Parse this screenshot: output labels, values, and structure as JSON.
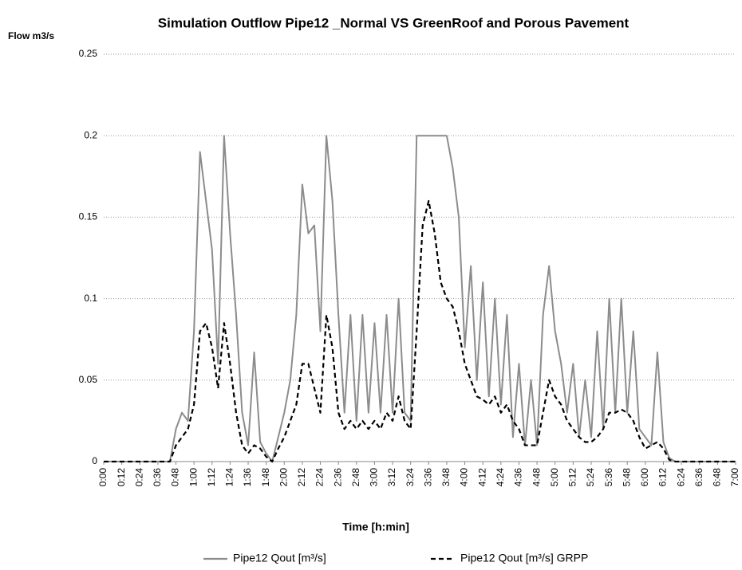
{
  "chart_data": {
    "type": "line",
    "title": "Simulation Outflow Pipe12 _Normal VS GreenRoof and Porous Pavement",
    "y_label": "Flow m3/s",
    "x_label": "Time [h:min]",
    "x": [
      0,
      4,
      8,
      12,
      16,
      20,
      24,
      28,
      32,
      36,
      40,
      44,
      48,
      52,
      56,
      60,
      64,
      68,
      72,
      76,
      80,
      84,
      88,
      92,
      96,
      100,
      104,
      108,
      112,
      116,
      120,
      124,
      128,
      132,
      136,
      140,
      144,
      148,
      152,
      156,
      160,
      164,
      168,
      172,
      176,
      180,
      184,
      188,
      192,
      196,
      200,
      204,
      208,
      212,
      216,
      220,
      224,
      228,
      232,
      236,
      240,
      244,
      248,
      252,
      256,
      260,
      264,
      268,
      272,
      276,
      280,
      284,
      288,
      292,
      296,
      300,
      304,
      308,
      312,
      316,
      320,
      324,
      328,
      332,
      336,
      340,
      344,
      348,
      352,
      356,
      360,
      364,
      368,
      372,
      376,
      380,
      384,
      388,
      392,
      396,
      400,
      404,
      408,
      412,
      416,
      420
    ],
    "series": [
      {
        "name": "Pipe12 Qout [m³/s]",
        "color": "#8c8c8c",
        "dash": "solid",
        "values": [
          0,
          0,
          0,
          0,
          0,
          0,
          0,
          0,
          0,
          0,
          0,
          0,
          0.02,
          0.03,
          0.025,
          0.08,
          0.19,
          0.16,
          0.13,
          0.06,
          0.2,
          0.14,
          0.09,
          0.03,
          0.01,
          0.067,
          0.012,
          0.005,
          0,
          0.015,
          0.03,
          0.05,
          0.09,
          0.17,
          0.14,
          0.145,
          0.08,
          0.2,
          0.16,
          0.09,
          0.03,
          0.09,
          0.025,
          0.09,
          0.03,
          0.085,
          0.03,
          0.09,
          0.03,
          0.1,
          0.03,
          0.025,
          0.2,
          0.2,
          0.2,
          0.2,
          0.2,
          0.2,
          0.18,
          0.15,
          0.07,
          0.12,
          0.05,
          0.11,
          0.04,
          0.1,
          0.035,
          0.09,
          0.015,
          0.06,
          0.01,
          0.05,
          0.01,
          0.09,
          0.12,
          0.08,
          0.06,
          0.03,
          0.06,
          0.015,
          0.05,
          0.015,
          0.08,
          0.02,
          0.1,
          0.03,
          0.1,
          0.03,
          0.08,
          0.02,
          0.015,
          0.01,
          0.067,
          0.012,
          0.002,
          0,
          0,
          0,
          0,
          0,
          0,
          0,
          0,
          0,
          0,
          0
        ]
      },
      {
        "name": "Pipe12 Qout [m³/s] GRPP",
        "color": "#000000",
        "dash": "dashed",
        "values": [
          0,
          0,
          0,
          0,
          0,
          0,
          0,
          0,
          0,
          0,
          0,
          0,
          0.01,
          0.015,
          0.02,
          0.035,
          0.08,
          0.085,
          0.07,
          0.045,
          0.085,
          0.06,
          0.03,
          0.01,
          0.005,
          0.01,
          0.008,
          0.003,
          0,
          0.008,
          0.015,
          0.025,
          0.035,
          0.06,
          0.06,
          0.045,
          0.03,
          0.09,
          0.07,
          0.03,
          0.02,
          0.025,
          0.02,
          0.025,
          0.02,
          0.025,
          0.02,
          0.03,
          0.025,
          0.04,
          0.025,
          0.02,
          0.08,
          0.145,
          0.16,
          0.14,
          0.11,
          0.1,
          0.095,
          0.08,
          0.06,
          0.05,
          0.04,
          0.038,
          0.035,
          0.04,
          0.03,
          0.035,
          0.025,
          0.02,
          0.01,
          0.01,
          0.01,
          0.03,
          0.05,
          0.04,
          0.035,
          0.025,
          0.02,
          0.015,
          0.012,
          0.012,
          0.015,
          0.02,
          0.03,
          0.03,
          0.032,
          0.03,
          0.025,
          0.015,
          0.008,
          0.01,
          0.012,
          0.008,
          0.001,
          0,
          0,
          0,
          0,
          0,
          0,
          0,
          0,
          0,
          0,
          0
        ]
      }
    ],
    "xlim": [
      0,
      420
    ],
    "xticks": [
      {
        "value": 0,
        "label": "0:00"
      },
      {
        "value": 12,
        "label": "0:12"
      },
      {
        "value": 24,
        "label": "0:24"
      },
      {
        "value": 36,
        "label": "0:36"
      },
      {
        "value": 48,
        "label": "0:48"
      },
      {
        "value": 60,
        "label": "1:00"
      },
      {
        "value": 72,
        "label": "1:12"
      },
      {
        "value": 84,
        "label": "1:24"
      },
      {
        "value": 96,
        "label": "1:36"
      },
      {
        "value": 108,
        "label": "1:48"
      },
      {
        "value": 120,
        "label": "2:00"
      },
      {
        "value": 132,
        "label": "2:12"
      },
      {
        "value": 144,
        "label": "2:24"
      },
      {
        "value": 156,
        "label": "2:36"
      },
      {
        "value": 168,
        "label": "2:48"
      },
      {
        "value": 180,
        "label": "3:00"
      },
      {
        "value": 192,
        "label": "3:12"
      },
      {
        "value": 204,
        "label": "3:24"
      },
      {
        "value": 216,
        "label": "3:36"
      },
      {
        "value": 228,
        "label": "3:48"
      },
      {
        "value": 240,
        "label": "4:00"
      },
      {
        "value": 252,
        "label": "4:12"
      },
      {
        "value": 264,
        "label": "4:24"
      },
      {
        "value": 276,
        "label": "4:36"
      },
      {
        "value": 288,
        "label": "4:48"
      },
      {
        "value": 300,
        "label": "5:00"
      },
      {
        "value": 312,
        "label": "5:12"
      },
      {
        "value": 324,
        "label": "5:24"
      },
      {
        "value": 336,
        "label": "5:36"
      },
      {
        "value": 348,
        "label": "5:48"
      },
      {
        "value": 360,
        "label": "6:00"
      },
      {
        "value": 372,
        "label": "6:12"
      },
      {
        "value": 384,
        "label": "6:24"
      },
      {
        "value": 396,
        "label": "6:36"
      },
      {
        "value": 408,
        "label": "6:48"
      },
      {
        "value": 420,
        "label": "7:00"
      }
    ],
    "ylim": [
      0,
      0.25
    ],
    "yticks": [
      0,
      0.05,
      0.1,
      0.15,
      0.2,
      0.25
    ],
    "grid": true,
    "legend": "bottom"
  }
}
